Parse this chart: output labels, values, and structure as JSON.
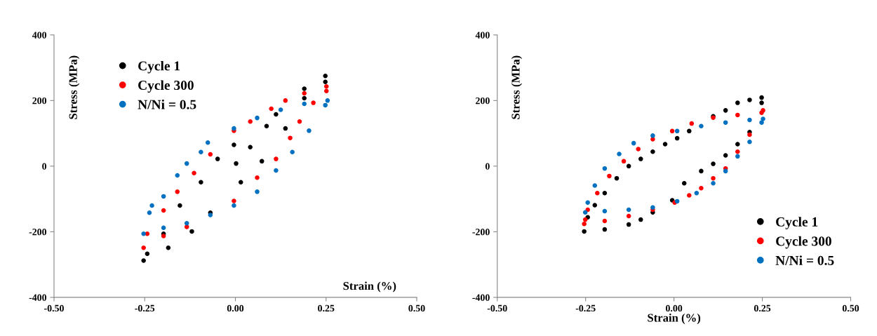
{
  "chart_data": [
    {
      "type": "scatter",
      "xlabel": "Strain (%)",
      "ylabel": "Stress (MPa)",
      "xlim": [
        -0.5,
        0.5
      ],
      "ylim": [
        -400,
        400
      ],
      "xticks": [
        {
          "value": -0.5,
          "label": "-0.50"
        },
        {
          "value": -0.25,
          "label": "-0.25"
        },
        {
          "value": 0,
          "label": "0.00"
        },
        {
          "value": 0.25,
          "label": "0.25"
        },
        {
          "value": 0.5,
          "label": "0.50"
        }
      ],
      "yticks": [
        -400,
        -200,
        0,
        200,
        400
      ],
      "legend": "top left",
      "marker": "circle",
      "grid": false,
      "series": [
        {
          "name": "Cycle 1",
          "color": "#000000",
          "x": [
            0.002,
            0.041,
            0.086,
            0.112,
            0.19,
            0.248,
            0.248,
            0.19,
            0.138,
            0.073,
            0.015,
            -0.069,
            -0.12,
            -0.185,
            -0.253,
            -0.243,
            -0.198,
            -0.153,
            -0.095,
            -0.049,
            -0.004
          ],
          "values": [
            8,
            58,
            122,
            158,
            236,
            275,
            257,
            207,
            115,
            15,
            -49,
            -142,
            -199,
            -249,
            -288,
            -267,
            -206,
            -120,
            -49,
            22,
            65
          ]
        },
        {
          "name": "Cycle 300",
          "color": "#ff0000",
          "x": [
            -0.253,
            -0.243,
            -0.198,
            -0.16,
            -0.114,
            -0.069,
            -0.004,
            0.041,
            0.099,
            0.138,
            0.19,
            0.251,
            0.251,
            0.215,
            0.177,
            0.151,
            0.112,
            0.06,
            -0.004,
            -0.134,
            -0.198
          ],
          "values": [
            -249,
            -206,
            -135,
            -78,
            -21,
            36,
            108,
            136,
            175,
            200,
            222,
            243,
            229,
            193,
            136,
            86,
            22,
            -35,
            -106,
            -185,
            -213
          ]
        },
        {
          "name": "N/Ni = 0.5",
          "color": "#0070c0",
          "x": [
            -0.253,
            -0.237,
            -0.23,
            -0.198,
            -0.16,
            -0.134,
            -0.095,
            -0.076,
            -0.004,
            0.06,
            0.125,
            0.19,
            0.254,
            0.248,
            0.203,
            0.157,
            0.112,
            0.06,
            -0.004,
            -0.069,
            -0.134,
            -0.198
          ],
          "values": [
            -206,
            -142,
            -120,
            -92,
            -28,
            8,
            43,
            72,
            115,
            147,
            172,
            190,
            200,
            186,
            108,
            43,
            -13,
            -78,
            -120,
            -149,
            -174,
            -188
          ]
        }
      ]
    },
    {
      "type": "scatter",
      "xlabel": "Strain (%)",
      "ylabel": "Stress (MPa)",
      "xlim": [
        -0.5,
        0.5
      ],
      "ylim": [
        -400,
        400
      ],
      "xticks": [
        {
          "value": -0.5,
          "label": "-0.50"
        },
        {
          "value": -0.25,
          "label": "-0.25"
        },
        {
          "value": 0,
          "label": "0.00"
        },
        {
          "value": 0.25,
          "label": "0.25"
        },
        {
          "value": 0.5,
          "label": "0.50"
        }
      ],
      "yticks": [
        -400,
        -200,
        0,
        200,
        400
      ],
      "legend": "bottom right",
      "marker": "circle",
      "grid": false,
      "series": [
        {
          "name": "Cycle 1",
          "color": "#000000",
          "x": [
            -0.254,
            -0.196,
            -0.128,
            -0.094,
            -0.06,
            -0.005,
            0.029,
            0.077,
            0.111,
            0.146,
            0.18,
            0.214,
            0.248,
            0.248,
            0.214,
            0.18,
            0.146,
            0.111,
            0.043,
            0.009,
            -0.025,
            -0.06,
            -0.094,
            -0.128,
            -0.162,
            -0.196,
            -0.224,
            -0.244
          ],
          "values": [
            -199,
            -193,
            -178,
            -163,
            -141,
            -104,
            -52,
            -15,
            7,
            33,
            67,
            104,
            193,
            209,
            202,
            193,
            170,
            152,
            107,
            85,
            67,
            44,
            22,
            0,
            -37,
            -82,
            -119,
            -156
          ]
        },
        {
          "name": "Cycle 300",
          "color": "#ff0000",
          "x": [
            -0.254,
            -0.196,
            -0.128,
            -0.06,
            0.002,
            0.043,
            0.077,
            0.111,
            0.146,
            0.18,
            0.214,
            0.252,
            0.248,
            0.18,
            0.111,
            0.05,
            -0.005,
            -0.06,
            -0.101,
            -0.142,
            -0.183,
            -0.217,
            -0.244,
            -0.251
          ],
          "values": [
            -176,
            -167,
            -152,
            -133,
            -111,
            -89,
            -67,
            -37,
            -7,
            44,
            96,
            170,
            163,
            156,
            148,
            130,
            107,
            82,
            52,
            15,
            -30,
            -82,
            -133,
            -163
          ]
        },
        {
          "name": "N/Ni = 0.5",
          "color": "#0070c0",
          "x": [
            -0.251,
            -0.196,
            -0.128,
            -0.06,
            0.009,
            0.064,
            0.111,
            0.146,
            0.18,
            0.214,
            0.248,
            0.252,
            0.214,
            0.146,
            0.077,
            0.009,
            -0.06,
            -0.114,
            -0.155,
            -0.196,
            -0.224,
            -0.244
          ],
          "values": [
            -141,
            -137,
            -133,
            -126,
            -107,
            -82,
            -52,
            -15,
            30,
            74,
            133,
            144,
            141,
            133,
            122,
            107,
            93,
            70,
            37,
            -7,
            -59,
            -111
          ]
        }
      ]
    }
  ]
}
